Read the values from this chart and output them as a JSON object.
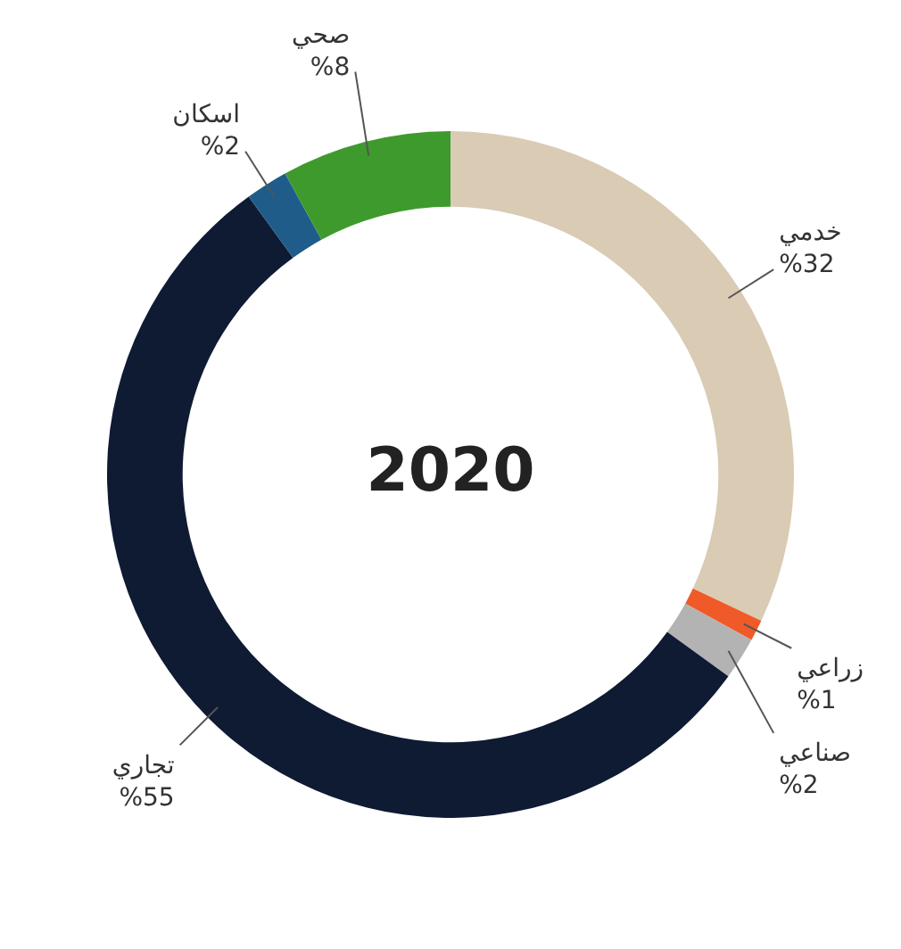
{
  "chart_data": {
    "type": "donut",
    "title": "2020",
    "categories": [
      "خدمي",
      "زراعي",
      "صناعي",
      "تجاري",
      "اسكان",
      "صحي"
    ],
    "values": [
      32,
      1,
      2,
      55,
      2,
      8
    ],
    "value_labels": [
      "%32",
      "%1",
      "%2",
      "%55",
      "%2",
      "%8"
    ],
    "colors": [
      "#d9cbb4",
      "#f05a28",
      "#b3b3b3",
      "#0f1a33",
      "#1f5c8a",
      "#3f9a2e"
    ],
    "legend": false
  }
}
